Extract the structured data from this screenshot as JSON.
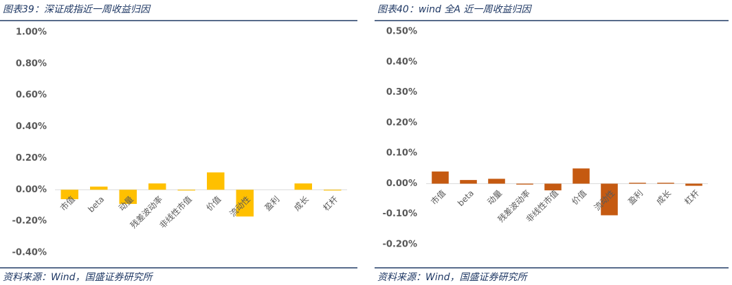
{
  "chart_data": [
    {
      "type": "bar",
      "title": "图表39：深证成指近一周收益归因",
      "source": "资料来源：Wind，国盛证券研究所",
      "categories": [
        "市值",
        "beta",
        "动量",
        "残差波动率",
        "非线性市值",
        "价值",
        "流动性",
        "盈利",
        "成长",
        "杠杆"
      ],
      "values": [
        -0.06,
        0.02,
        -0.09,
        0.04,
        -0.005,
        0.11,
        -0.17,
        0,
        0.04,
        -0.005
      ],
      "color": "#ffc000",
      "ylim": [
        -0.4,
        1.0
      ],
      "yticks": [
        {
          "value": -0.4,
          "label": "-0.40%"
        },
        {
          "value": -0.2,
          "label": "-0.20%"
        },
        {
          "value": 0,
          "label": "0.00%"
        },
        {
          "value": 0.2,
          "label": "0.20%"
        },
        {
          "value": 0.4,
          "label": "0.40%"
        },
        {
          "value": 0.6,
          "label": "0.60%"
        },
        {
          "value": 0.8,
          "label": "0.80%"
        },
        {
          "value": 1.0,
          "label": "1.00%"
        }
      ]
    },
    {
      "type": "bar",
      "title": "图表40：wind 全A 近一周收益归因",
      "source": "资料来源：Wind，国盛证券研究所",
      "categories": [
        "市值",
        "beta",
        "动量",
        "残差波动率",
        "非线性市值",
        "价值",
        "流动性",
        "盈利",
        "成长",
        "杠杆"
      ],
      "values": [
        0.04,
        0.012,
        0.016,
        -0.003,
        -0.022,
        0.05,
        -0.104,
        0.003,
        0.003,
        -0.007
      ],
      "color": "#c55a11",
      "ylim": [
        -0.2,
        0.5
      ],
      "yticks": [
        {
          "value": -0.2,
          "label": "-0.20%"
        },
        {
          "value": -0.1,
          "label": "-0.10%"
        },
        {
          "value": 0,
          "label": "0.00%"
        },
        {
          "value": 0.1,
          "label": "0.10%"
        },
        {
          "value": 0.2,
          "label": "0.20%"
        },
        {
          "value": 0.3,
          "label": "0.30%"
        },
        {
          "value": 0.4,
          "label": "0.40%"
        },
        {
          "value": 0.5,
          "label": "0.50%"
        }
      ]
    }
  ]
}
